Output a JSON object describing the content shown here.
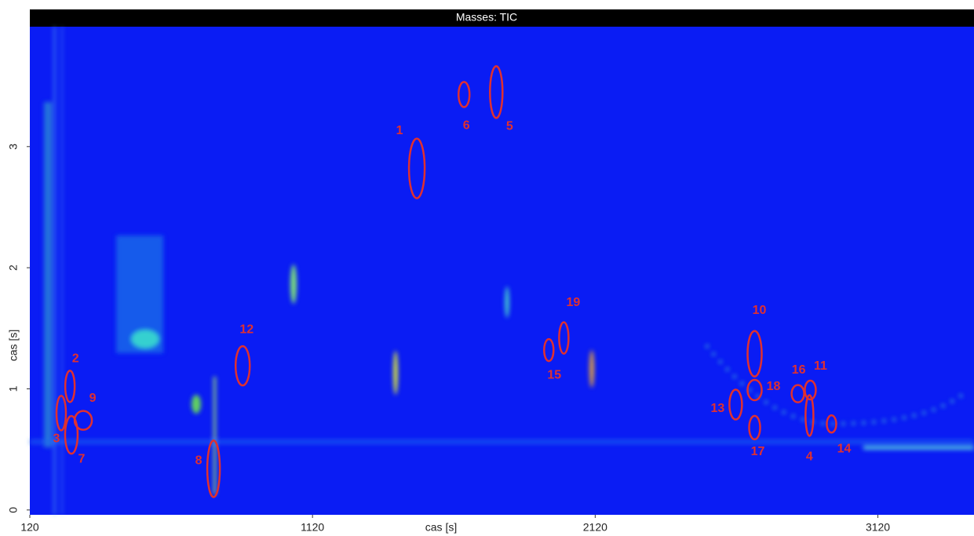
{
  "chart_data": {
    "type": "contour",
    "title": "Masses: TIC",
    "x_label": "cas [s]",
    "y_label": "cas [s]",
    "xlim": [
      120,
      3460
    ],
    "xticks": [
      120,
      1120,
      2120,
      3120
    ],
    "ylim": [
      -0.04,
      3.99
    ],
    "yticks": [
      0,
      1,
      2,
      3
    ],
    "annotations": [
      {
        "label": "1",
        "x": 1489,
        "y": 2.82
      },
      {
        "label": "2",
        "x": 262,
        "y": 1.02
      },
      {
        "label": "3",
        "x": 231,
        "y": 0.8
      },
      {
        "label": "4",
        "x": 2878,
        "y": 0.78
      },
      {
        "label": "5",
        "x": 1770,
        "y": 3.45
      },
      {
        "label": "6",
        "x": 1656,
        "y": 3.43
      },
      {
        "label": "7",
        "x": 267,
        "y": 0.62
      },
      {
        "label": "8",
        "x": 770,
        "y": 0.34
      },
      {
        "label": "9",
        "x": 309,
        "y": 0.74
      },
      {
        "label": "10",
        "x": 2684,
        "y": 1.29
      },
      {
        "label": "11",
        "x": 2881,
        "y": 0.99
      },
      {
        "label": "12",
        "x": 873,
        "y": 1.19
      },
      {
        "label": "13",
        "x": 2617,
        "y": 0.87
      },
      {
        "label": "14",
        "x": 2956,
        "y": 0.71
      },
      {
        "label": "15",
        "x": 1956,
        "y": 1.32
      },
      {
        "label": "16",
        "x": 2837,
        "y": 0.96
      },
      {
        "label": "17",
        "x": 2684,
        "y": 0.68
      },
      {
        "label": "18",
        "x": 2684,
        "y": 0.99
      },
      {
        "label": "19",
        "x": 2009,
        "y": 1.42
      }
    ]
  }
}
